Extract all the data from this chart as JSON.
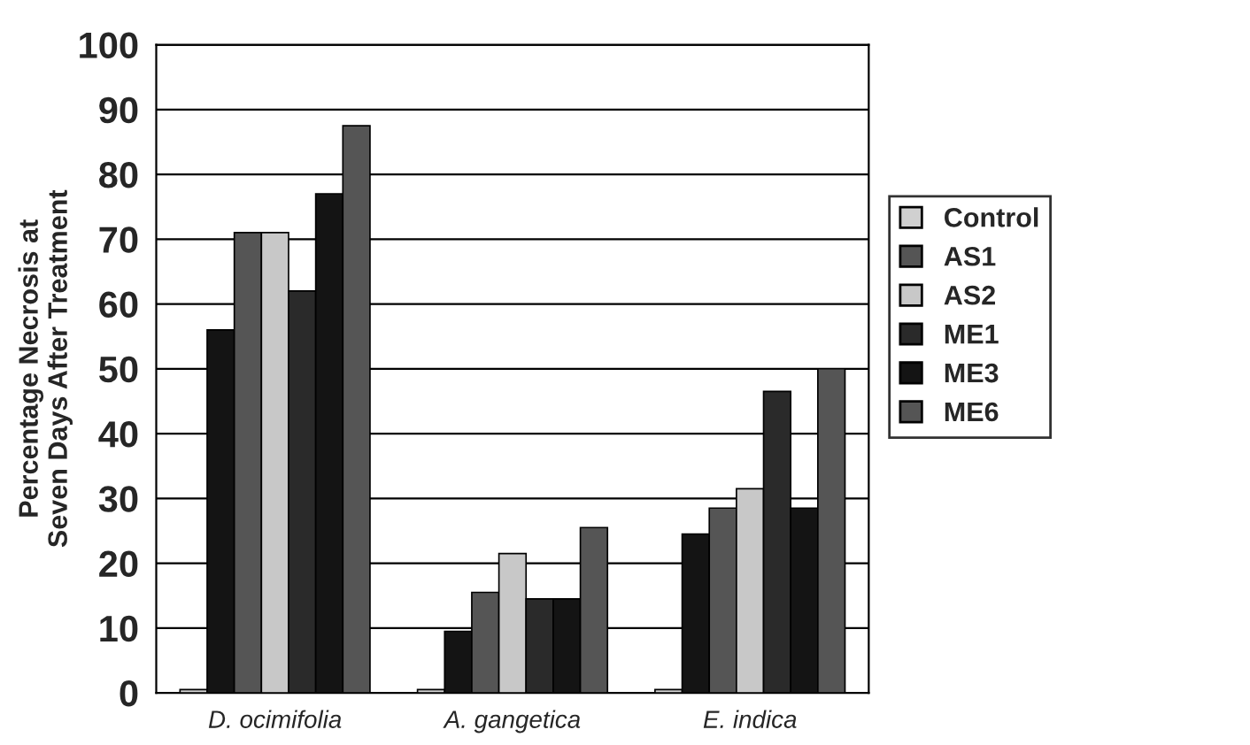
{
  "chart_data": {
    "type": "bar",
    "ylabel": "Percentage Necrosis at\nSeven Days After Treatment",
    "categories": [
      "D. ocimifolia",
      "A. gangetica",
      "E. indica"
    ],
    "series": [
      {
        "name": "Control",
        "color": "#d0d0d0",
        "values": [
          0.5,
          0.5,
          0.5
        ]
      },
      {
        "color": "#141414",
        "values": [
          56,
          9.5,
          24.5
        ]
      },
      {
        "name": "AS1",
        "color": "#555555",
        "values": [
          71,
          15.5,
          28.5
        ]
      },
      {
        "name": "AS2",
        "color": "#c8c8c8",
        "values": [
          71,
          21.5,
          31.5
        ]
      },
      {
        "name": "ME1",
        "color": "#2a2a2a",
        "values": [
          62,
          14.5,
          46.5
        ]
      },
      {
        "name": "ME3",
        "color": "#141414",
        "values": [
          77,
          14.5,
          28.5
        ]
      },
      {
        "name": "ME6",
        "color": "#555555",
        "values": [
          87.5,
          25.5,
          50
        ]
      }
    ],
    "ylim": [
      0,
      100
    ],
    "yticks": [
      0,
      10,
      20,
      30,
      40,
      50,
      60,
      70,
      80,
      90,
      100
    ],
    "grid": "y",
    "legend": "right"
  }
}
